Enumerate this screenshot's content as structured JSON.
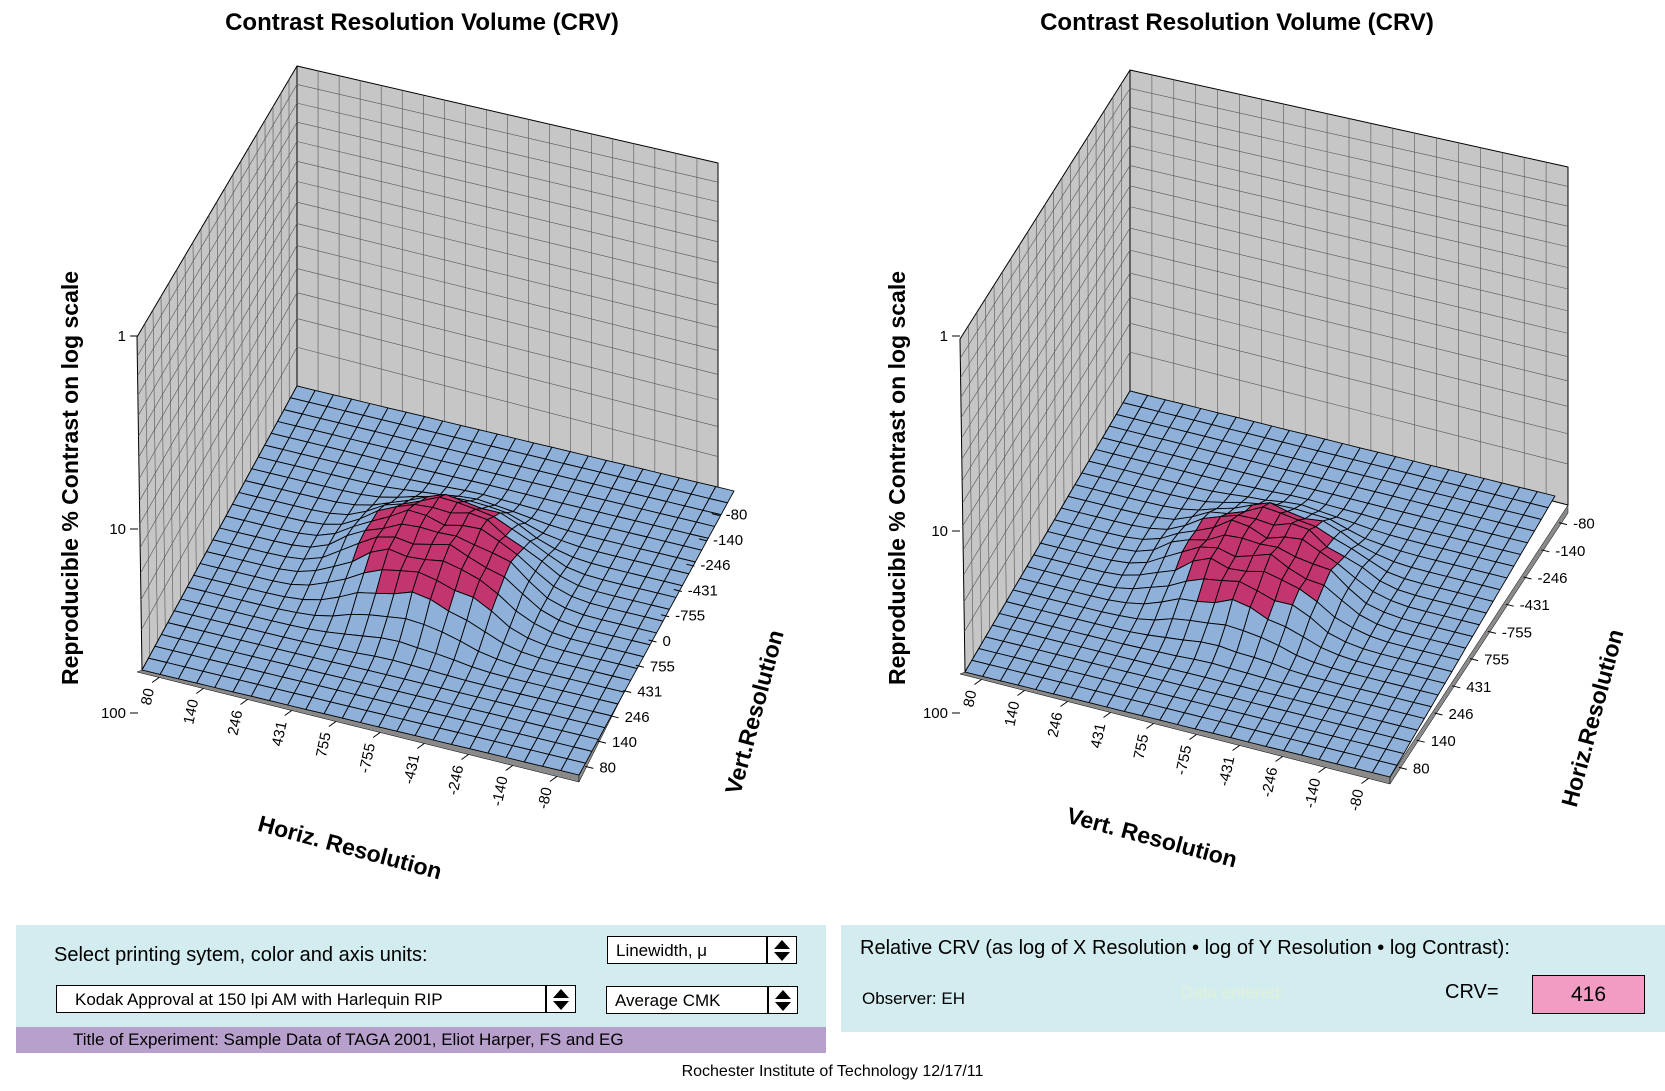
{
  "colors": {
    "cap": "#c2356f",
    "skirt": "#8eb0d9",
    "wall": "#c6c6c6",
    "floor_side": "#8a8a8a",
    "panel_bg": "#d2ecef",
    "purple_bar": "#b7a0cc",
    "crv_box": "#f29bc3"
  },
  "chart_data": [
    {
      "type": "surface3d",
      "title": "Contrast Resolution Volume (CRV)",
      "zlabel": "Reproducible % Contrast  on log scale",
      "z_ticks": [
        "1",
        "10",
        "100"
      ],
      "z_scale": "log",
      "xlabel": "Horiz. Resolution",
      "x_ticks": [
        "80",
        "140",
        "246",
        "431",
        "755",
        "-755",
        "-431",
        "-246",
        "-140",
        "-80"
      ],
      "ylabel": "Vert.Resolution",
      "y_ticks": [
        "-80",
        "-140",
        "-246",
        "-431",
        "-755",
        "0",
        "755",
        "431",
        "246",
        "140",
        "80"
      ],
      "grid": true
    },
    {
      "type": "surface3d",
      "title": "Contrast Resolution Volume (CRV)",
      "zlabel": "Reproducible % Contrast  on log scale",
      "z_ticks": [
        "1",
        "10",
        "100"
      ],
      "z_scale": "log",
      "xlabel": "Vert. Resolution",
      "x_ticks": [
        "80",
        "140",
        "246",
        "431",
        "755",
        "-755",
        "-431",
        "-246",
        "-140",
        "-80"
      ],
      "ylabel": "Horiz.Resolution",
      "y_ticks": [
        "-80",
        "-140",
        "-246",
        "-431",
        "-755",
        "755",
        "431",
        "246",
        "140",
        "80"
      ],
      "grid": true
    }
  ],
  "controls": {
    "select_label": "Select printing sytem,  color and axis units:",
    "units_select": "Linewidth, μ",
    "system_select": "Kodak Approval at 150 lpi AM with Harlequin RIP",
    "color_select": "Average CMK",
    "title_of_experiment": "Title of Experiment:   Sample Data of TAGA 2001, Eliot Harper, FS and EG"
  },
  "results": {
    "relative_crv": "Relative CRV (as log of  X Resolution • log of Y Resolution • log Contrast):",
    "observer": "Observer: EH",
    "data_entered": "Data entered:",
    "crv_label": "CRV=",
    "crv_value": "416"
  },
  "footer": "Rochester Institute of Technology   12/17/11"
}
